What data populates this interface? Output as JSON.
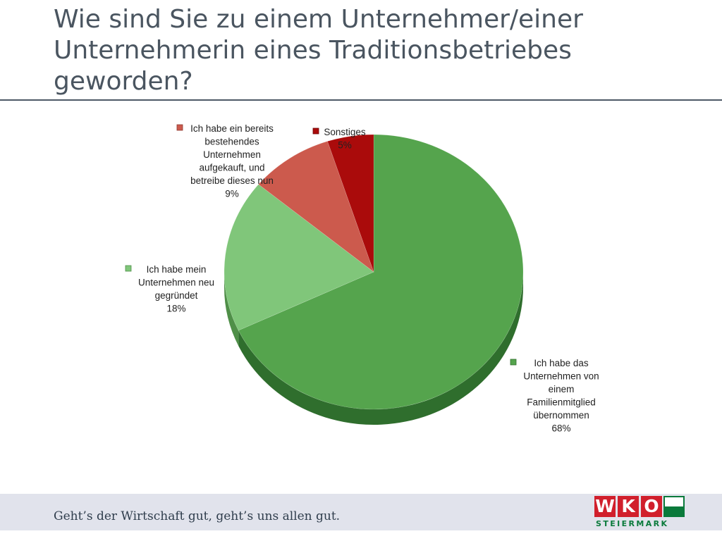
{
  "title": "Wie sind Sie zu einem Unternehmer/einer Unternehmerin eines Traditionsbetriebes geworden?",
  "chart_data": {
    "type": "pie",
    "title": "",
    "style": "3d",
    "slices": [
      {
        "label_lines": [
          "Ich habe das",
          "Unternehmen von",
          "einem",
          "Familienmitglied",
          "übernommen"
        ],
        "value": 68,
        "value_label": "68%",
        "color": "#55a44d",
        "side": "#2f6e2d"
      },
      {
        "label_lines": [
          "Ich habe mein",
          "Unternehmen neu",
          "gegründet"
        ],
        "value": 18,
        "value_label": "18%",
        "color": "#80c67a",
        "side": "#4f8f48"
      },
      {
        "label_lines": [
          "Ich habe ein bereits",
          "bestehendes",
          "Unternehmen",
          "aufgekauft, und",
          "betreibe dieses nun"
        ],
        "value": 9,
        "value_label": "9%",
        "color": "#cc5a4d",
        "side": "#8e3a31"
      },
      {
        "label_lines": [
          "Sonstiges"
        ],
        "value": 5,
        "value_label": "5%",
        "color": "#aa0b0b",
        "side": "#6e0606"
      }
    ]
  },
  "footer": {
    "slogan": "Geht’s der Wirtschaft gut, geht’s uns allen gut.",
    "logo_letters": [
      "W",
      "K",
      "O"
    ],
    "logo_sub": "STEIERMARK"
  }
}
